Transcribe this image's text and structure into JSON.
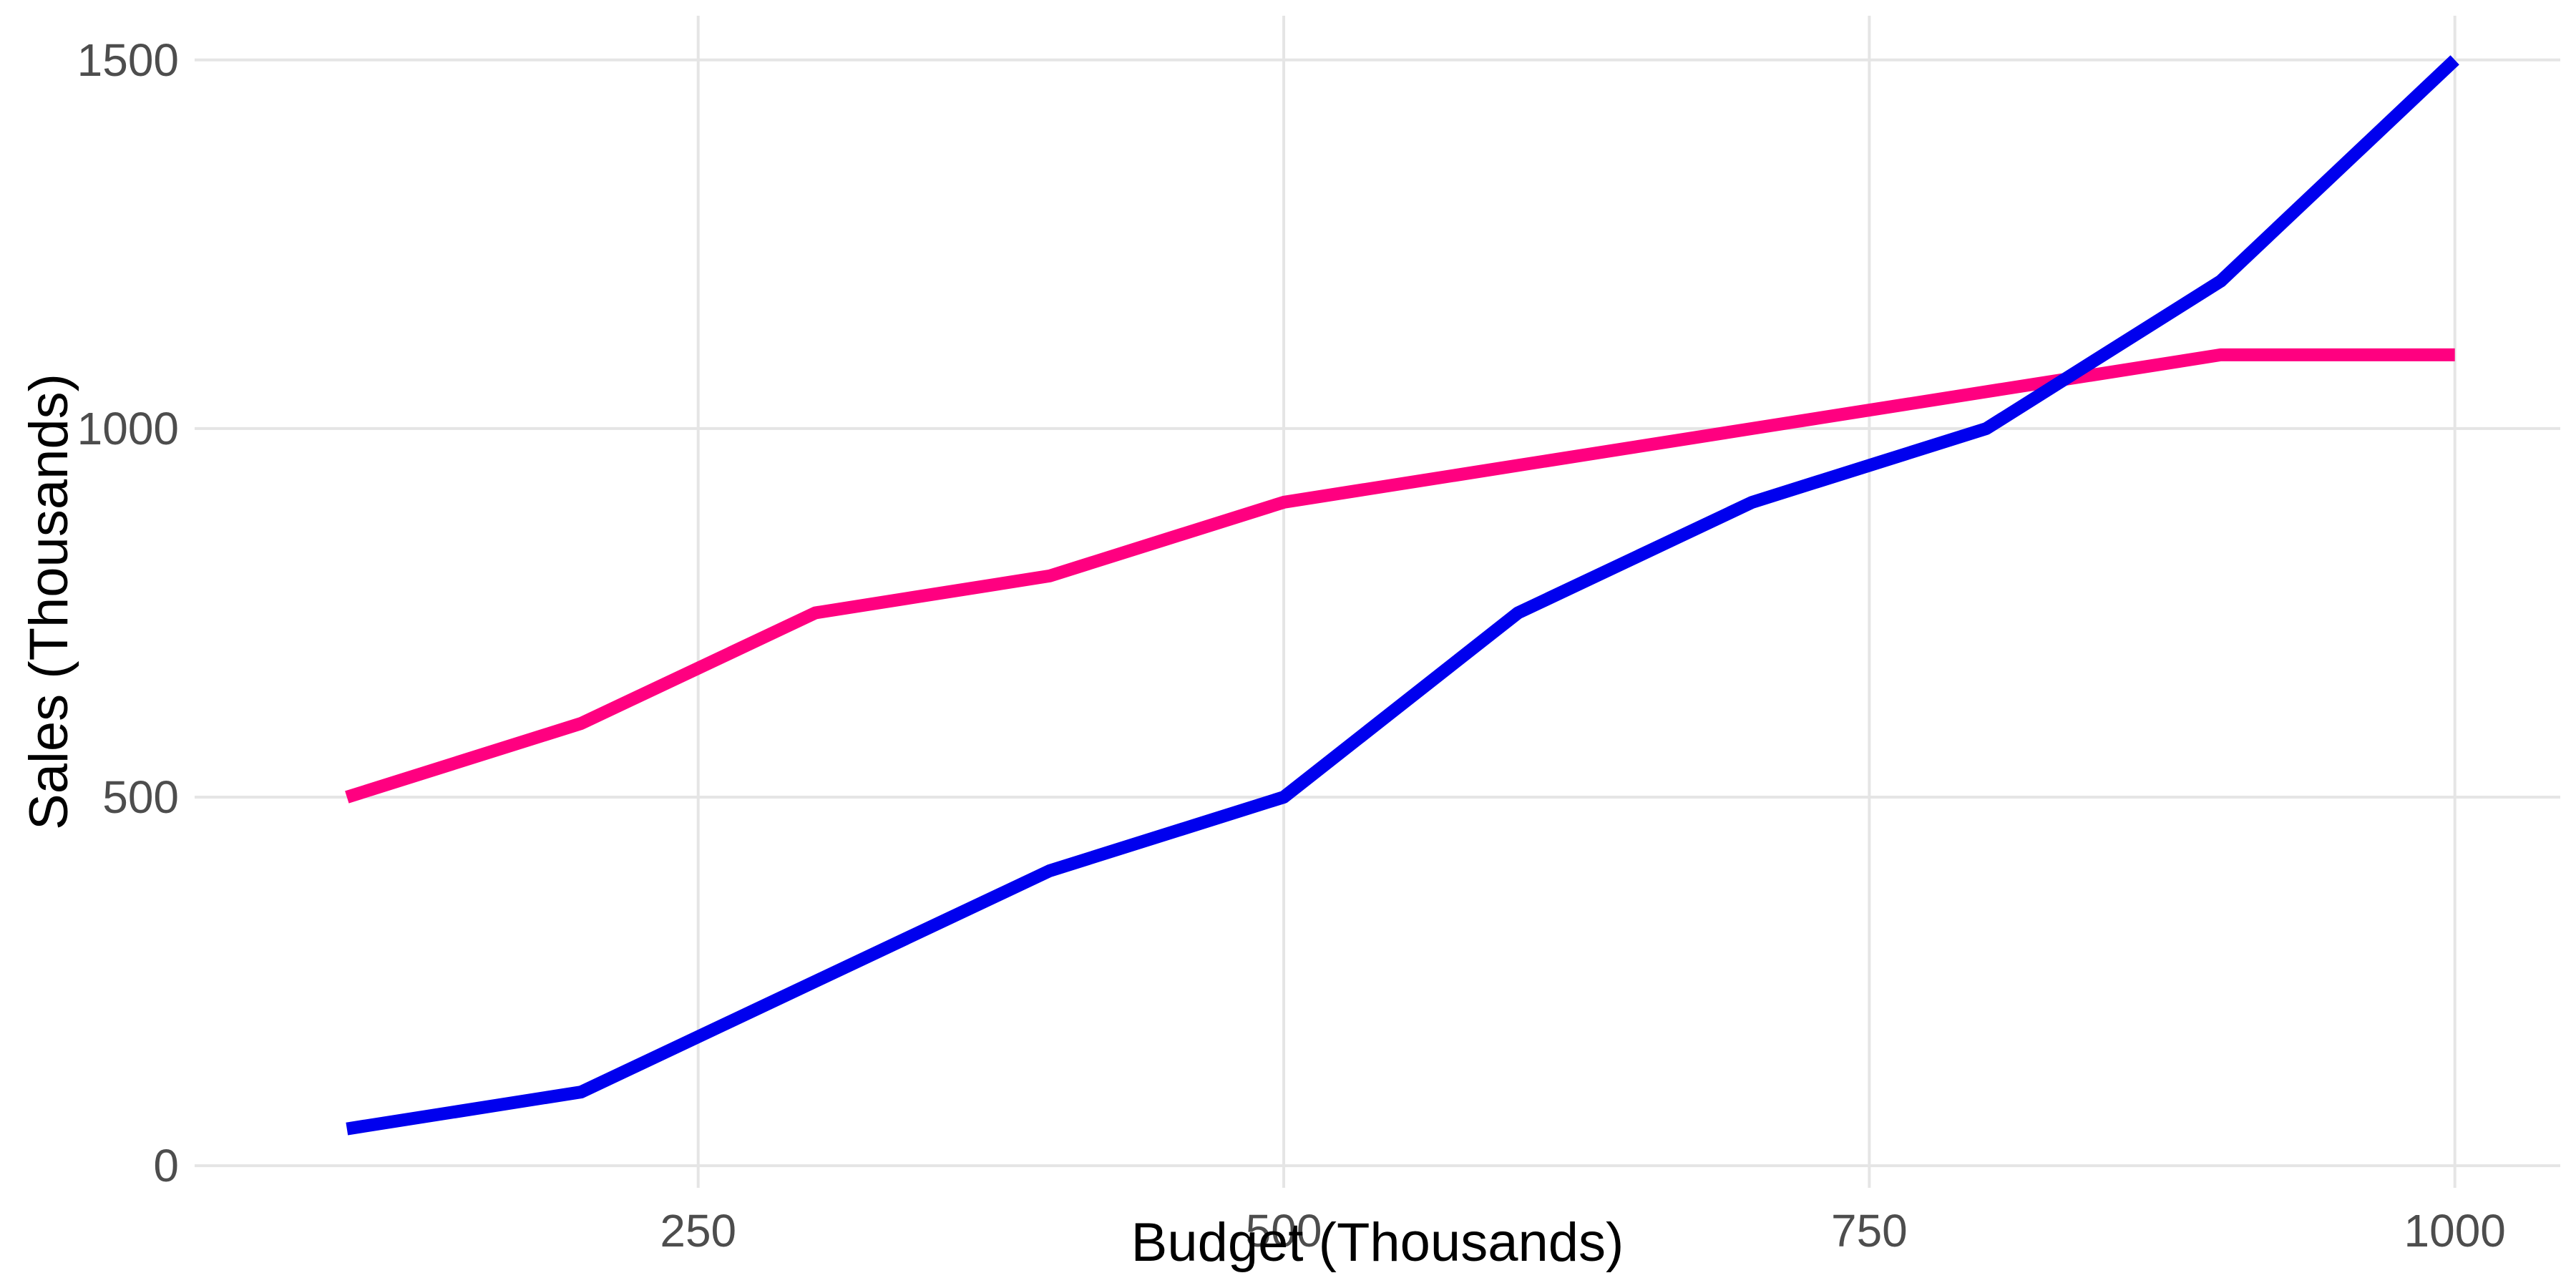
{
  "chart_data": {
    "type": "line",
    "title": "",
    "xlabel": "Budget (Thousands)",
    "ylabel": "Sales (Thousands)",
    "x": [
      100,
      200,
      300,
      400,
      500,
      600,
      700,
      800,
      900,
      1000
    ],
    "xlim": [
      35,
      1045
    ],
    "ylim": [
      -30,
      1560
    ],
    "x_ticks": [
      250,
      500,
      750,
      1000
    ],
    "y_ticks": [
      0,
      500,
      1000,
      1500
    ],
    "x_tick_labels": [
      "250",
      "500",
      "750",
      "1000"
    ],
    "y_tick_labels": [
      "0",
      "500",
      "1000",
      "1500"
    ],
    "grid": true,
    "legend": "none",
    "series": [
      {
        "color": "#ff0080",
        "values": [
          500,
          600,
          750,
          800,
          900,
          950,
          1000,
          1050,
          1100,
          1100
        ]
      },
      {
        "color": "#0000ee",
        "values": [
          50,
          100,
          250,
          400,
          500,
          750,
          900,
          1000,
          1200,
          1500
        ]
      }
    ]
  }
}
